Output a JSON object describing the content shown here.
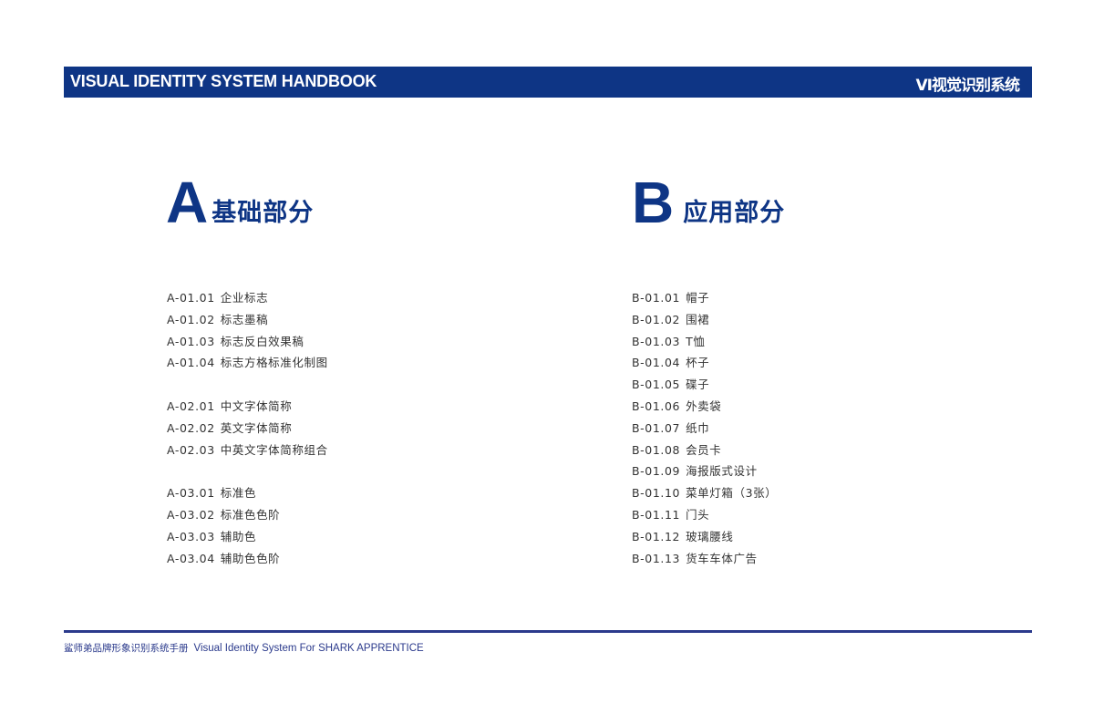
{
  "header": {
    "title_en": "VISUAL IDENTITY SYSTEM HANDBOOK",
    "title_cn": "VI视觉识别系统",
    "color": "#0e3585"
  },
  "section_a": {
    "letter": "A",
    "title": "基础部分",
    "groups": [
      [
        {
          "code": "A-01.01",
          "label": "企业标志"
        },
        {
          "code": "A-01.02",
          "label": "标志墨稿"
        },
        {
          "code": "A-01.03",
          "label": "标志反白效果稿"
        },
        {
          "code": "A-01.04",
          "label": "标志方格标准化制图"
        }
      ],
      [
        {
          "code": "A-02.01",
          "label": "中文字体简称"
        },
        {
          "code": "A-02.02",
          "label": "英文字体简称"
        },
        {
          "code": "A-02.03",
          "label": "中英文字体简称组合"
        }
      ],
      [
        {
          "code": "A-03.01",
          "label": "标准色"
        },
        {
          "code": "A-03.02",
          "label": "标准色色阶"
        },
        {
          "code": "A-03.03",
          "label": "辅助色"
        },
        {
          "code": "A-03.04",
          "label": "辅助色色阶"
        }
      ]
    ]
  },
  "section_b": {
    "letter": "B",
    "title": "应用部分",
    "items": [
      {
        "code": "B-01.01",
        "label": "帽子"
      },
      {
        "code": "B-01.02",
        "label": "围裙"
      },
      {
        "code": "B-01.03",
        "label": "T恤"
      },
      {
        "code": "B-01.04",
        "label": "杯子"
      },
      {
        "code": "B-01.05",
        "label": "碟子"
      },
      {
        "code": "B-01.06",
        "label": "外卖袋"
      },
      {
        "code": "B-01.07",
        "label": "纸巾"
      },
      {
        "code": "B-01.08",
        "label": "会员卡"
      },
      {
        "code": "B-01.09",
        "label": "海报版式设计"
      },
      {
        "code": "B-01.10",
        "label": "菜单灯箱（3张）"
      },
      {
        "code": "B-01.11",
        "label": "门头"
      },
      {
        "code": "B-01.12",
        "label": "玻璃腰线"
      },
      {
        "code": "B-01.13",
        "label": "货车车体广告"
      }
    ]
  },
  "footer": {
    "cn": "鲨师弟品牌形象识别系统手册",
    "en": "Visual Identity System For SHARK APPRENTICE"
  }
}
